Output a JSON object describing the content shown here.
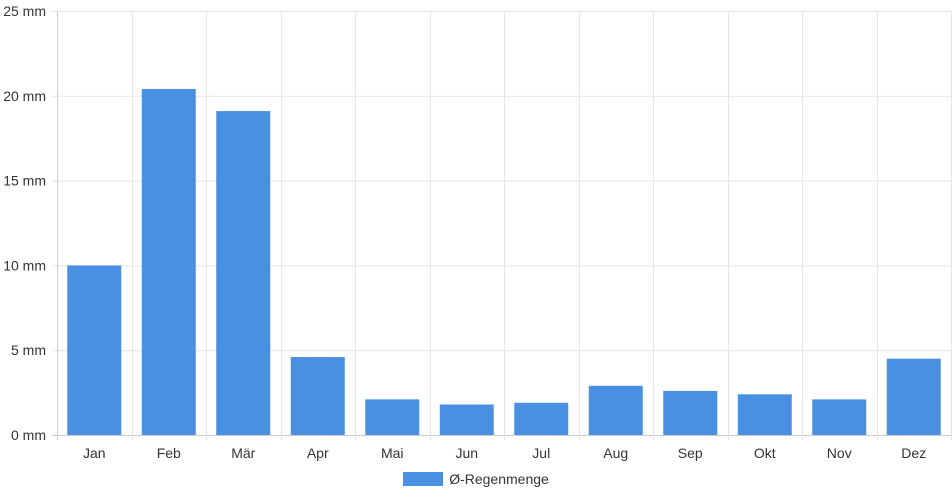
{
  "chart_data": {
    "type": "bar",
    "categories": [
      "Jan",
      "Feb",
      "Mär",
      "Apr",
      "Mai",
      "Jun",
      "Jul",
      "Aug",
      "Sep",
      "Okt",
      "Nov",
      "Dez"
    ],
    "series": [
      {
        "name": "Ø-Regenmenge",
        "values": [
          10.0,
          20.4,
          19.1,
          4.6,
          2.1,
          1.8,
          1.9,
          2.9,
          2.6,
          2.4,
          2.1,
          4.5
        ]
      }
    ],
    "ylim": [
      0,
      25
    ],
    "yticks": [
      0,
      5,
      10,
      15,
      20,
      25
    ],
    "ytick_labels": [
      "0 mm",
      "5 mm",
      "10 mm",
      "15 mm",
      "20 mm",
      "25 mm"
    ],
    "grid": true,
    "legend_position": "bottom-center",
    "colors": {
      "bar": "#4a90e2",
      "grid": "#e5e5e5",
      "axis": "#cccccc"
    }
  }
}
